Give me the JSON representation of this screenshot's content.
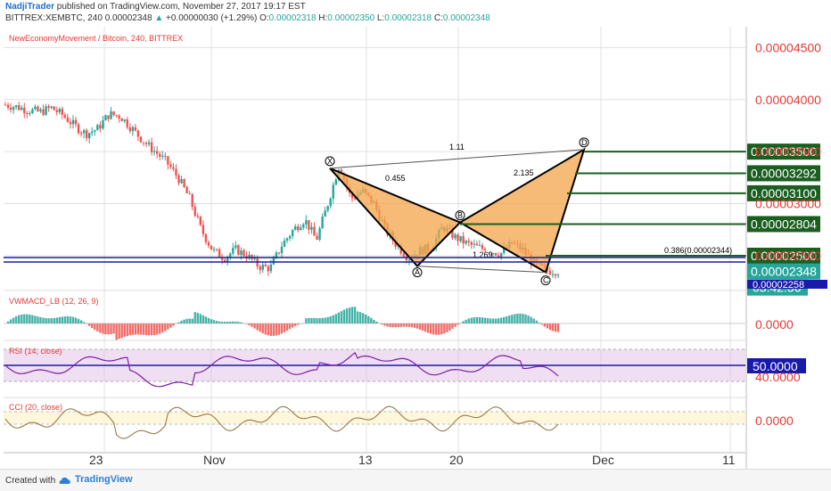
{
  "header": {
    "author": "NadjiTrader",
    "published": " published on TradingView.com, November 27, 2017 19:17 EST",
    "symbol": "BITTREX:XEMBTC, 240",
    "last": "0.00002348",
    "change": "+0.00000030 (+1.29%)",
    "O_label": "O:",
    "O": "0.00002318",
    "H_label": "H:",
    "H": "0.00002350",
    "L_label": "L:",
    "L": "0.00002318",
    "C_label": "C:",
    "C": "0.00002348"
  },
  "footer": {
    "created_with": "Created with",
    "brand": "TradingView"
  },
  "colors": {
    "accent_blue": "#1e6fd0",
    "up": "#26a69a",
    "down": "#ef5350",
    "pattern_fill": "#f3a64a",
    "fib_green": "#1b5e20",
    "rsi_purple": "#7b1fa2",
    "level_blue": "#1a1aaa"
  },
  "chart_data": {
    "type": "candlestick",
    "title": "NewEconomyMovement / Bitcoin, 240, BITTREX",
    "y_ticks": [
      "0.00004500",
      "0.00004000",
      "0.00003500",
      "0.00003000",
      "0.00002500"
    ],
    "ylim": [
      2.2e-05,
      4.7e-05
    ],
    "x_ticks": [
      "23",
      "Nov",
      "13",
      "20",
      "Dec",
      "11"
    ],
    "price_path": [
      [
        0,
        3.95e-05
      ],
      [
        2,
        3.93e-05
      ],
      [
        4,
        3.9e-05
      ],
      [
        6,
        3.88e-05
      ],
      [
        8,
        3.92e-05
      ],
      [
        10,
        3.85e-05
      ],
      [
        12,
        3.75e-05
      ],
      [
        14,
        3.67e-05
      ],
      [
        16,
        3.72e-05
      ],
      [
        18,
        3.86e-05
      ],
      [
        20,
        3.84e-05
      ],
      [
        22,
        3.72e-05
      ],
      [
        24,
        3.6e-05
      ],
      [
        26,
        3.5e-05
      ],
      [
        28,
        3.4e-05
      ],
      [
        30,
        3.25e-05
      ],
      [
        32,
        3.05e-05
      ],
      [
        34,
        2.75e-05
      ],
      [
        36,
        2.55e-05
      ],
      [
        38,
        2.48e-05
      ],
      [
        40,
        2.56e-05
      ],
      [
        42,
        2.5e-05
      ],
      [
        44,
        2.4e-05
      ],
      [
        46,
        2.38e-05
      ],
      [
        48,
        2.6e-05
      ],
      [
        50,
        2.75e-05
      ],
      [
        52,
        2.85e-05
      ],
      [
        54,
        2.65e-05
      ],
      [
        56,
        3e-05
      ],
      [
        58,
        3.38e-05
      ],
      [
        60,
        3.05e-05
      ],
      [
        62,
        3.12e-05
      ],
      [
        64,
        3e-05
      ],
      [
        66,
        2.75e-05
      ],
      [
        68,
        2.6e-05
      ],
      [
        70,
        2.48e-05
      ],
      [
        72,
        2.55e-05
      ],
      [
        74,
        2.58e-05
      ],
      [
        76,
        2.78e-05
      ],
      [
        78,
        2.68e-05
      ],
      [
        80,
        2.62e-05
      ],
      [
        82,
        2.58e-05
      ],
      [
        84,
        2.55e-05
      ],
      [
        86,
        2.52e-05
      ],
      [
        88,
        2.62e-05
      ],
      [
        90,
        2.55e-05
      ],
      [
        92,
        2.41e-05
      ],
      [
        94,
        2.36e-05
      ],
      [
        96,
        2.35e-05
      ]
    ],
    "pattern": {
      "points": [
        {
          "name": "X",
          "value": 3.34e-05
        },
        {
          "name": "A",
          "value": 2.4e-05
        },
        {
          "name": "B",
          "value": 2.82e-05
        },
        {
          "name": "C",
          "value": 2.34e-05
        },
        {
          "name": "D",
          "value": 3.52e-05
        }
      ],
      "ratios": {
        "xb": "0.455",
        "xd": "1.11",
        "ac": "1.269",
        "bd": "2.135"
      }
    },
    "levels": [
      "0.00003500",
      "0.00003292",
      "0.00003100",
      "0.00002804",
      "0.00002500"
    ],
    "current_price_label": "0.00002348",
    "countdown": "03:42:56",
    "lower_tag": "0.00002258",
    "fib_label": "0.386(0.00002344)",
    "panels": [
      {
        "name": "VWMACD_LB (12, 26, 9)",
        "value_label": "0.0000"
      },
      {
        "name": "RSI (14, close)",
        "value_label": "50.0000",
        "sub_label": "40.0000"
      },
      {
        "name": "CCI (20, close)",
        "value_label": "0.0000"
      }
    ]
  }
}
